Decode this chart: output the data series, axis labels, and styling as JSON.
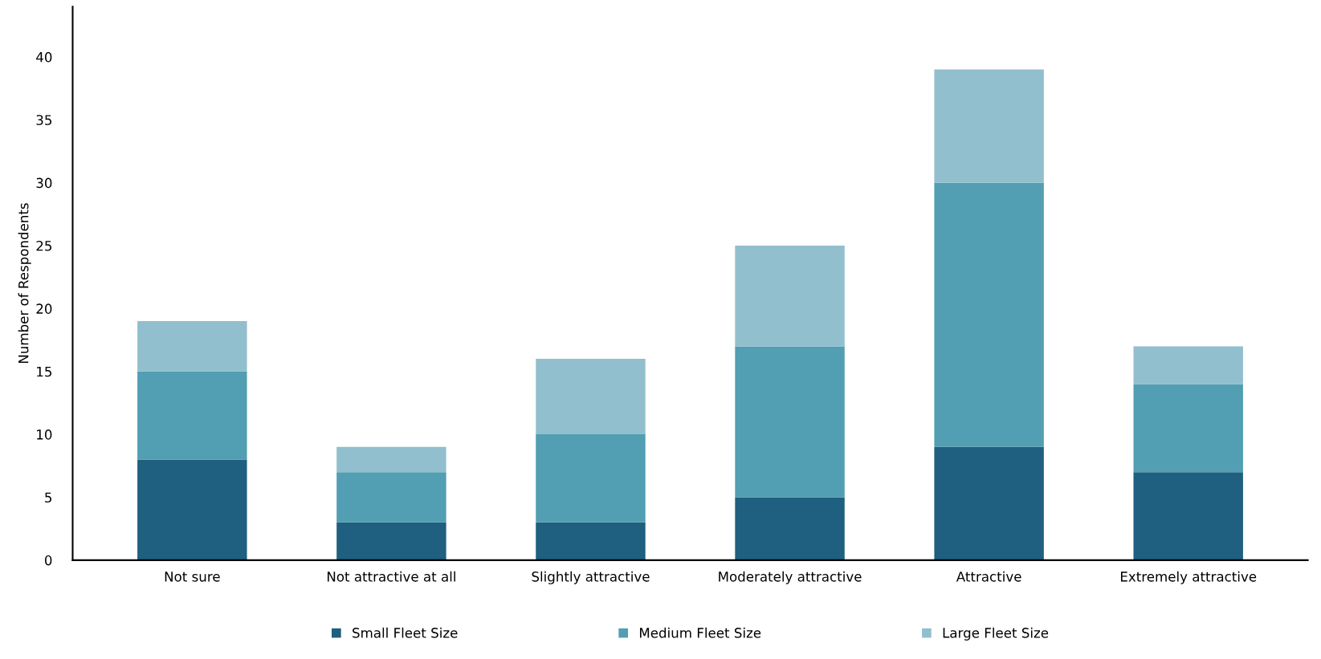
{
  "chart_data": {
    "type": "bar",
    "stacked": true,
    "ylabel": "Number of Respondents",
    "categories": [
      "Not sure",
      "Not attractive at all",
      "Slightly attractive",
      "Moderately attractive",
      "Attractive",
      "Extremely attractive"
    ],
    "series": [
      {
        "name": "Small Fleet Size",
        "color": "#1f5f7f",
        "values": [
          8,
          3,
          3,
          5,
          9,
          7
        ]
      },
      {
        "name": "Medium Fleet Size",
        "color": "#529eb3",
        "values": [
          7,
          4,
          7,
          12,
          21,
          7
        ]
      },
      {
        "name": "Large Fleet Size",
        "color": "#91bfcd",
        "values": [
          4,
          2,
          6,
          8,
          9,
          3
        ]
      }
    ],
    "ylim": [
      0,
      44
    ],
    "yticks": [
      0,
      5,
      10,
      15,
      20,
      25,
      30,
      35,
      40
    ],
    "grid": false,
    "legend": "bottom"
  }
}
